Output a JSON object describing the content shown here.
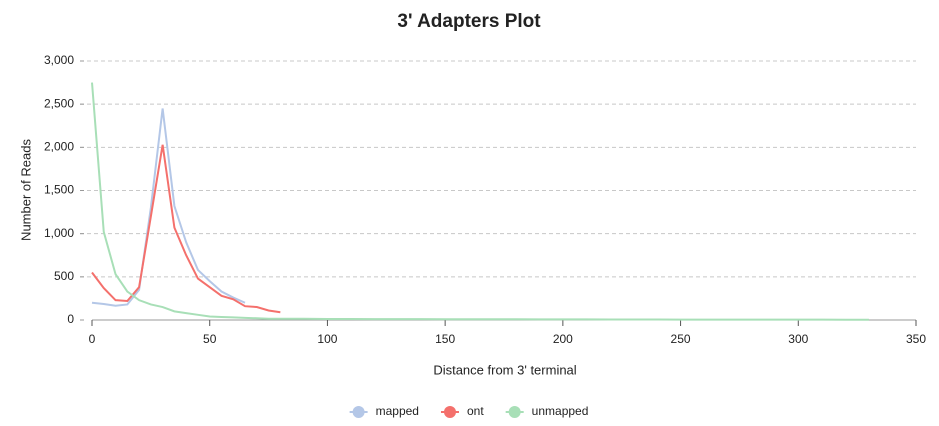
{
  "chart_data": {
    "type": "line",
    "title": "3' Adapters Plot",
    "x_label": "Distance from 3' terminal",
    "y_label": "Number of Reads",
    "xlim": [
      0,
      350
    ],
    "xticks": [
      0,
      50,
      100,
      150,
      200,
      250,
      300,
      350
    ],
    "ylim": [
      0,
      3000
    ],
    "yticks": [
      0,
      500,
      {
        "value": 1000,
        "label": "1,000"
      },
      {
        "value": 1500,
        "label": "1,500"
      },
      {
        "value": 2000,
        "label": "2,000"
      },
      {
        "value": 2500,
        "label": "2,500"
      },
      {
        "value": 3000,
        "label": "3,000"
      }
    ],
    "grid": true,
    "legend": "bottom",
    "series": [
      {
        "name": "mapped",
        "color": "#b4c7e7",
        "x": [
          0,
          5,
          10,
          15,
          20,
          25,
          30,
          35,
          40,
          45,
          50,
          55,
          60,
          65
        ],
        "values": [
          200,
          185,
          165,
          180,
          350,
          1300,
          2450,
          1320,
          900,
          580,
          450,
          330,
          260,
          200
        ]
      },
      {
        "name": "ont",
        "color": "#f4706c",
        "x": [
          0,
          5,
          10,
          15,
          20,
          25,
          30,
          35,
          40,
          45,
          50,
          55,
          60,
          65,
          70,
          75,
          80
        ],
        "values": [
          550,
          370,
          230,
          220,
          380,
          1200,
          2030,
          1070,
          750,
          480,
          380,
          280,
          240,
          160,
          150,
          110,
          90
        ]
      },
      {
        "name": "unmapped",
        "color": "#a8dfb7",
        "x": [
          0,
          5,
          10,
          15,
          20,
          25,
          30,
          35,
          40,
          45,
          50,
          55,
          60,
          65,
          70,
          75,
          80,
          90,
          100,
          110,
          120,
          130,
          140,
          150,
          160,
          170,
          180,
          190,
          200,
          210,
          220,
          230,
          240,
          250,
          260,
          270,
          280,
          290,
          300,
          310,
          320,
          330
        ],
        "values": [
          2750,
          1020,
          530,
          330,
          230,
          180,
          150,
          100,
          80,
          60,
          40,
          35,
          30,
          25,
          20,
          15,
          15,
          15,
          12,
          12,
          10,
          10,
          10,
          8,
          8,
          8,
          8,
          7,
          7,
          7,
          6,
          6,
          6,
          5,
          5,
          5,
          5,
          4,
          4,
          4,
          3,
          3
        ]
      }
    ]
  }
}
